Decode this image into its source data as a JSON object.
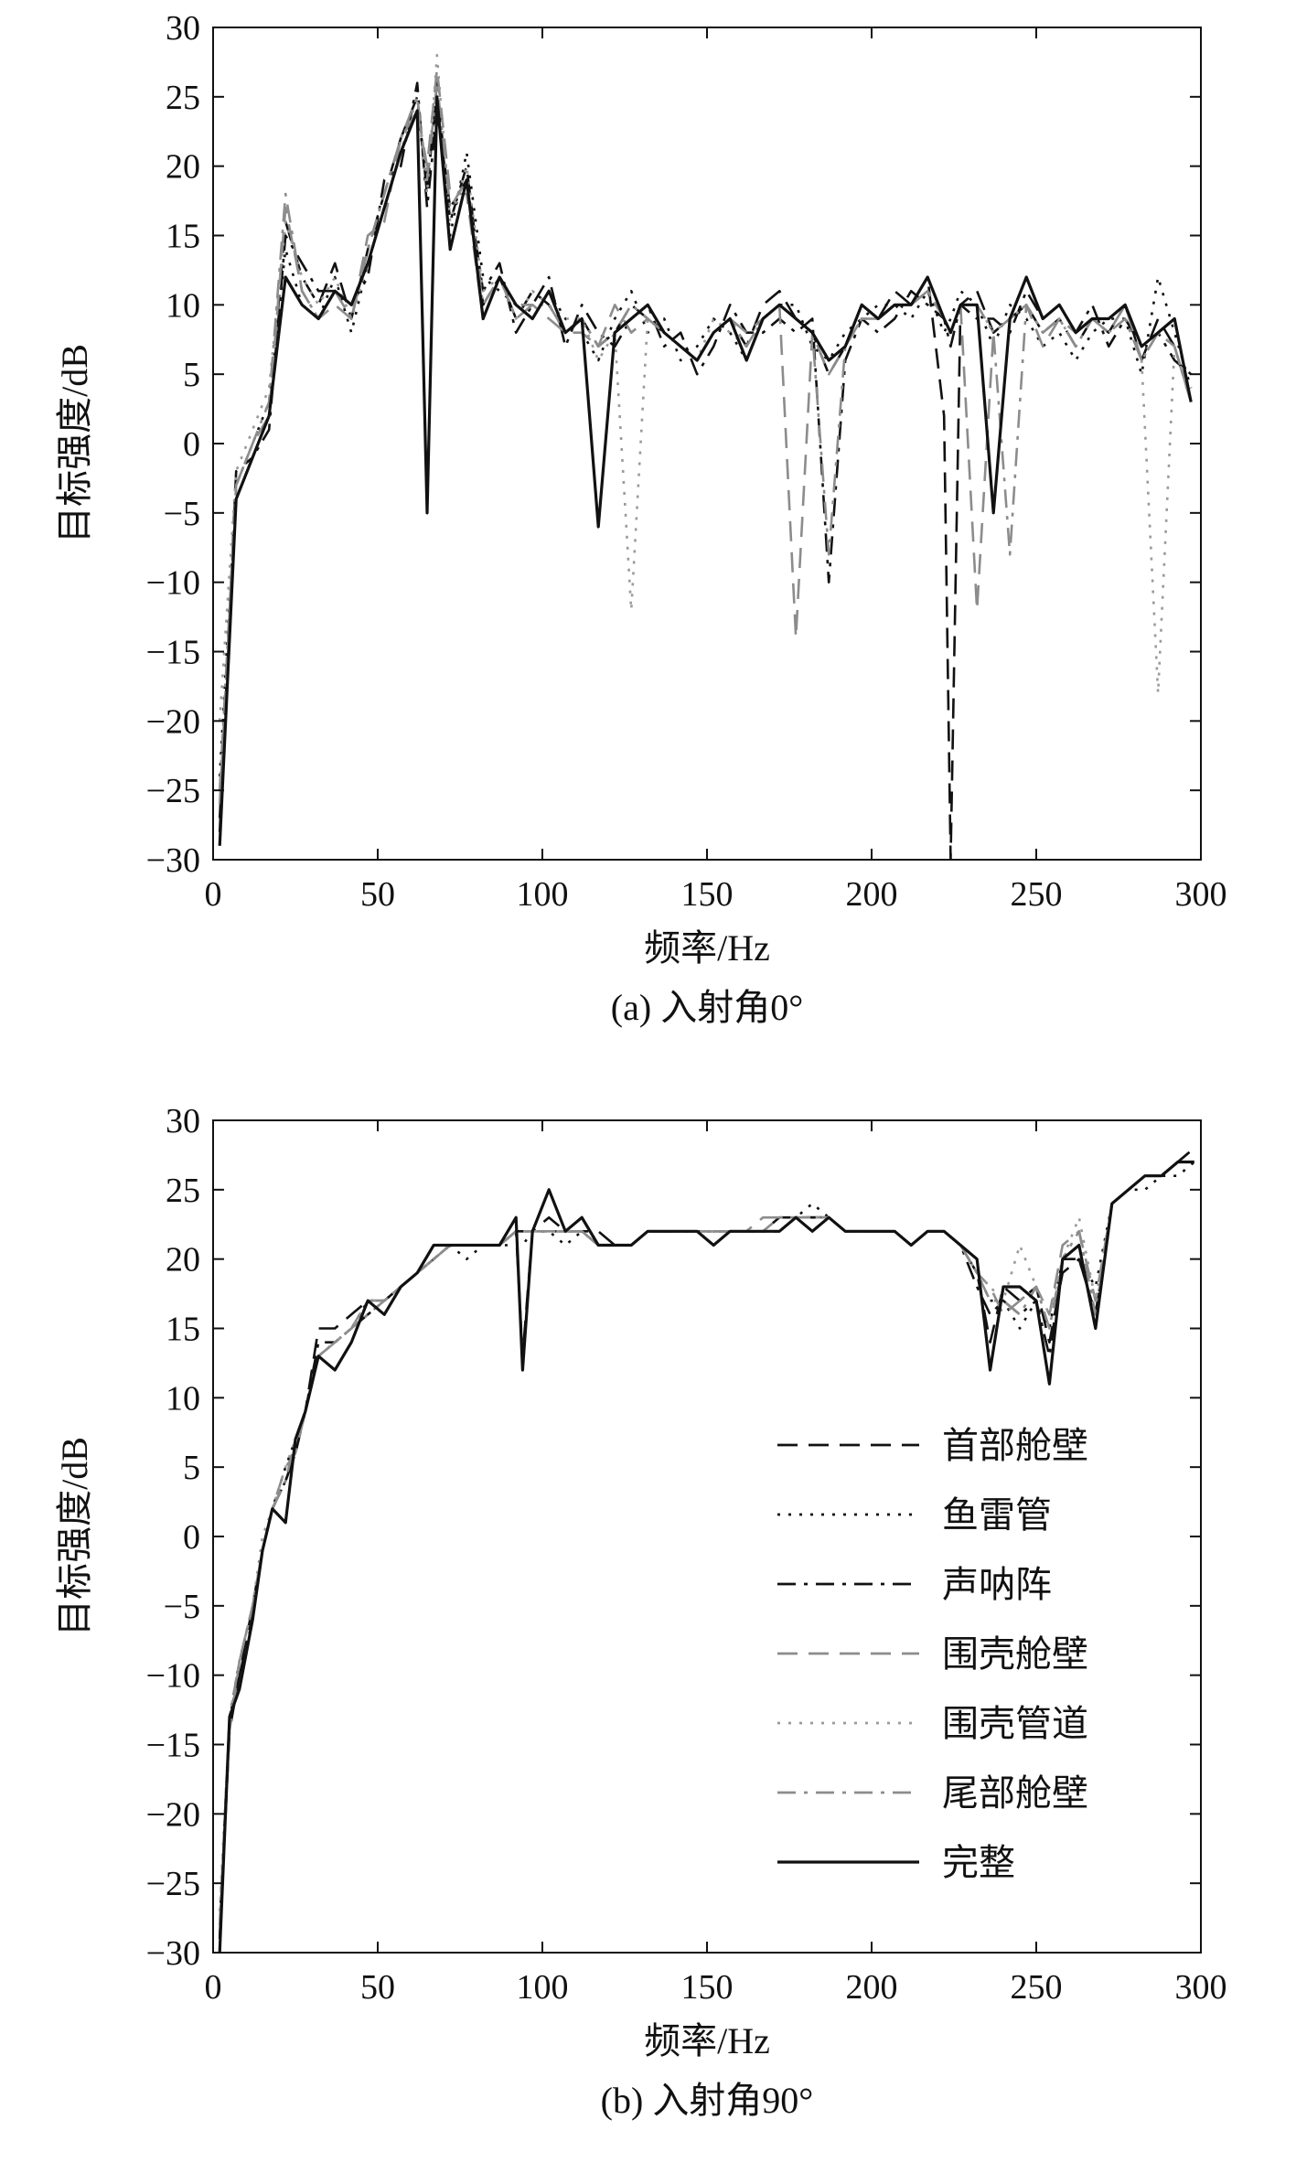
{
  "legend_entries": [
    {
      "name": "首部舱壁",
      "color": "#111111",
      "dash": "dash"
    },
    {
      "name": "鱼雷管",
      "color": "#111111",
      "dash": "dot"
    },
    {
      "name": "声呐阵",
      "color": "#111111",
      "dash": "dashdot"
    },
    {
      "name": "围壳舱壁",
      "color": "#8c8c8c",
      "dash": "dash"
    },
    {
      "name": "围壳管道",
      "color": "#9a9a9a",
      "dash": "dot"
    },
    {
      "name": "尾部舱壁",
      "color": "#8c8c8c",
      "dash": "dashdot"
    },
    {
      "name": "完整",
      "color": "#111111",
      "dash": "solid"
    }
  ],
  "chart_data": [
    {
      "type": "line",
      "caption": "(a) 入射角0°",
      "xlabel": "频率/Hz",
      "ylabel": "目标强度/dB",
      "xlim": [
        0,
        300
      ],
      "ylim": [
        -30,
        30
      ],
      "xticks": [
        0,
        50,
        100,
        150,
        200,
        250,
        300
      ],
      "yticks": [
        -30,
        -25,
        -20,
        -15,
        -10,
        -5,
        0,
        5,
        10,
        15,
        20,
        25,
        30
      ],
      "x": [
        2,
        7,
        12,
        17,
        22,
        27,
        32,
        37,
        42,
        47,
        52,
        57,
        62,
        65,
        68,
        72,
        77,
        82,
        87,
        92,
        97,
        102,
        107,
        112,
        117,
        122,
        127,
        132,
        137,
        142,
        147,
        152,
        157,
        162,
        167,
        172,
        177,
        182,
        187,
        192,
        197,
        202,
        207,
        212,
        217,
        222,
        224,
        227,
        232,
        237,
        242,
        247,
        252,
        257,
        262,
        267,
        272,
        277,
        282,
        287,
        292,
        297
      ],
      "series": [
        {
          "name": "首部舱壁",
          "values": [
            -28,
            -2,
            -1,
            2,
            16,
            12,
            10,
            13,
            9,
            14,
            18,
            22,
            25,
            18,
            26,
            16,
            20,
            10,
            12,
            9,
            11,
            10,
            8,
            9,
            7,
            8,
            10,
            9,
            8,
            7,
            6,
            8,
            9,
            7,
            10,
            11,
            9,
            8,
            5,
            7,
            10,
            9,
            11,
            10,
            12,
            2,
            -30,
            10,
            11,
            8,
            9,
            10,
            8,
            9,
            7,
            9,
            8,
            10,
            6,
            9,
            7,
            3
          ]
        },
        {
          "name": "鱼雷管",
          "values": [
            -24,
            -3,
            0,
            3,
            14,
            10,
            9,
            12,
            8,
            13,
            17,
            21,
            24,
            19,
            25,
            15,
            21,
            12,
            11,
            10,
            9,
            11,
            9,
            8,
            6,
            9,
            11,
            8,
            9,
            6,
            7,
            9,
            8,
            6,
            9,
            10,
            10,
            7,
            6,
            8,
            9,
            10,
            10,
            9,
            11,
            8,
            9,
            11,
            10,
            7,
            10,
            9,
            7,
            8,
            6,
            8,
            9,
            9,
            5,
            12,
            8,
            4
          ]
        },
        {
          "name": "声呐阵",
          "values": [
            -27,
            -4,
            -1,
            1,
            15,
            13,
            11,
            11,
            10,
            12,
            19,
            20,
            26,
            17,
            24,
            17,
            19,
            11,
            13,
            8,
            10,
            12,
            7,
            10,
            8,
            7,
            9,
            10,
            7,
            8,
            5,
            7,
            10,
            8,
            8,
            9,
            8,
            9,
            -10,
            6,
            9,
            8,
            9,
            11,
            10,
            9,
            7,
            10,
            9,
            9,
            8,
            11,
            9,
            10,
            8,
            10,
            7,
            9,
            7,
            8,
            6,
            5
          ]
        },
        {
          "name": "围壳舱壁",
          "values": [
            -26,
            -3,
            0,
            2,
            17,
            11,
            9,
            10,
            9,
            15,
            16,
            22,
            24,
            20,
            27,
            18,
            18,
            9,
            12,
            10,
            10,
            9,
            8,
            8,
            7,
            10,
            8,
            9,
            8,
            7,
            6,
            8,
            9,
            8,
            9,
            10,
            -14,
            8,
            5,
            7,
            9,
            9,
            10,
            10,
            11,
            9,
            8,
            10,
            -12,
            8,
            9,
            10,
            7,
            9,
            8,
            9,
            8,
            10,
            6,
            8,
            7,
            3
          ]
        },
        {
          "name": "围壳管道",
          "values": [
            -20,
            -2,
            1,
            4,
            16,
            12,
            10,
            12,
            9,
            13,
            17,
            21,
            25,
            18,
            28,
            16,
            20,
            11,
            12,
            9,
            11,
            10,
            9,
            9,
            6,
            8,
            -12,
            9,
            8,
            7,
            6,
            9,
            8,
            7,
            9,
            10,
            9,
            8,
            6,
            7,
            9,
            9,
            10,
            10,
            11,
            9,
            8,
            10,
            10,
            8,
            9,
            10,
            8,
            9,
            7,
            9,
            8,
            9,
            6,
            -18,
            7,
            3
          ]
        },
        {
          "name": "尾部舱壁",
          "values": [
            -25,
            -3,
            0,
            3,
            18,
            11,
            9,
            11,
            9,
            14,
            18,
            22,
            25,
            19,
            26,
            17,
            19,
            10,
            12,
            9,
            10,
            10,
            8,
            9,
            7,
            8,
            10,
            9,
            8,
            7,
            6,
            8,
            9,
            7,
            9,
            10,
            9,
            8,
            -8,
            7,
            9,
            9,
            10,
            10,
            11,
            9,
            8,
            10,
            10,
            8,
            -8,
            10,
            8,
            9,
            7,
            9,
            8,
            9,
            6,
            8,
            7,
            3
          ]
        },
        {
          "name": "完整",
          "values": [
            -29,
            -4,
            -1,
            2,
            12,
            10,
            9,
            11,
            10,
            13,
            17,
            21,
            24,
            -5,
            25,
            14,
            19,
            9,
            12,
            10,
            9,
            11,
            8,
            9,
            -6,
            8,
            9,
            10,
            8,
            7,
            6,
            8,
            9,
            6,
            9,
            10,
            9,
            8,
            6,
            7,
            10,
            9,
            10,
            10,
            12,
            9,
            8,
            10,
            10,
            -5,
            9,
            12,
            9,
            10,
            8,
            9,
            9,
            10,
            7,
            8,
            9,
            3
          ]
        }
      ]
    },
    {
      "type": "line",
      "caption": "(b) 入射角90°",
      "xlabel": "频率/Hz",
      "ylabel": "目标强度/dB",
      "xlim": [
        0,
        300
      ],
      "ylim": [
        -30,
        30
      ],
      "xticks": [
        0,
        50,
        100,
        150,
        200,
        250,
        300
      ],
      "yticks": [
        -30,
        -25,
        -20,
        -15,
        -10,
        -5,
        0,
        5,
        10,
        15,
        20,
        25,
        30
      ],
      "x": [
        2,
        5,
        8,
        12,
        15,
        18,
        22,
        25,
        28,
        32,
        37,
        42,
        47,
        52,
        57,
        62,
        67,
        72,
        77,
        82,
        87,
        92,
        94,
        97,
        102,
        107,
        112,
        117,
        122,
        127,
        132,
        137,
        142,
        147,
        152,
        157,
        162,
        167,
        172,
        177,
        182,
        187,
        192,
        197,
        202,
        207,
        212,
        217,
        222,
        227,
        232,
        236,
        240,
        245,
        250,
        254,
        258,
        263,
        268,
        273,
        278,
        283,
        288,
        293,
        298
      ],
      "series": [
        {
          "name": "首部舱壁",
          "values": [
            -29,
            -14,
            -10,
            -5,
            -1,
            2,
            4,
            6,
            9,
            15,
            15,
            16,
            17,
            17,
            18,
            19,
            20,
            21,
            21,
            21,
            21,
            22,
            13,
            22,
            23,
            22,
            22,
            22,
            21,
            21,
            22,
            22,
            22,
            22,
            22,
            22,
            22,
            22,
            23,
            23,
            23,
            23,
            22,
            22,
            22,
            22,
            21,
            22,
            22,
            21,
            19,
            14,
            18,
            17,
            18,
            14,
            19,
            20,
            16,
            24,
            25,
            26,
            26,
            27,
            28
          ]
        },
        {
          "name": "鱼雷管",
          "values": [
            -28,
            -13,
            -9,
            -5,
            -1,
            2,
            5,
            7,
            9,
            13,
            14,
            15,
            17,
            17,
            18,
            19,
            20,
            21,
            20,
            21,
            21,
            21,
            21,
            22,
            22,
            21,
            22,
            21,
            21,
            21,
            22,
            22,
            22,
            22,
            22,
            22,
            22,
            22,
            22,
            23,
            24,
            23,
            22,
            22,
            22,
            22,
            21,
            22,
            22,
            21,
            19,
            17,
            17,
            15,
            17,
            15,
            20,
            20,
            18,
            24,
            25,
            25,
            26,
            26,
            27
          ]
        },
        {
          "name": "声呐阵",
          "values": [
            -29,
            -13,
            -10,
            -6,
            -1,
            2,
            4,
            6,
            9,
            14,
            14,
            15,
            16,
            17,
            18,
            19,
            20,
            21,
            21,
            21,
            21,
            22,
            22,
            22,
            22,
            22,
            22,
            21,
            21,
            21,
            22,
            22,
            22,
            22,
            22,
            22,
            22,
            22,
            22,
            23,
            23,
            23,
            22,
            22,
            22,
            22,
            21,
            22,
            22,
            21,
            18,
            16,
            17,
            16,
            17,
            13,
            20,
            20,
            16,
            24,
            25,
            26,
            26,
            27,
            28
          ]
        },
        {
          "name": "围壳舱壁",
          "values": [
            -28,
            -14,
            -9,
            -5,
            -1,
            2,
            5,
            6,
            9,
            13,
            14,
            15,
            17,
            17,
            18,
            19,
            20,
            21,
            21,
            21,
            21,
            22,
            22,
            22,
            22,
            22,
            22,
            21,
            21,
            21,
            22,
            22,
            22,
            22,
            22,
            22,
            22,
            23,
            23,
            23,
            23,
            23,
            22,
            22,
            22,
            22,
            21,
            22,
            22,
            21,
            19,
            18,
            16,
            17,
            18,
            16,
            21,
            22,
            17,
            24,
            25,
            26,
            26,
            27,
            27
          ]
        },
        {
          "name": "围壳管道",
          "values": [
            -27,
            -13,
            -9,
            -5,
            0,
            2,
            5,
            7,
            9,
            13,
            14,
            15,
            17,
            17,
            18,
            19,
            20,
            21,
            21,
            21,
            21,
            22,
            22,
            22,
            22,
            22,
            22,
            21,
            21,
            21,
            22,
            22,
            22,
            22,
            22,
            22,
            22,
            22,
            22,
            23,
            23,
            23,
            22,
            22,
            22,
            22,
            21,
            22,
            22,
            21,
            19,
            18,
            17,
            21,
            18,
            16,
            20,
            23,
            17,
            24,
            25,
            26,
            26,
            27,
            27
          ]
        },
        {
          "name": "尾部舱壁",
          "values": [
            -28,
            -13,
            -9,
            -5,
            -1,
            2,
            4,
            7,
            9,
            13,
            14,
            15,
            16,
            17,
            18,
            19,
            20,
            21,
            21,
            21,
            21,
            22,
            22,
            22,
            22,
            22,
            22,
            21,
            21,
            21,
            22,
            22,
            22,
            22,
            22,
            22,
            22,
            22,
            23,
            23,
            23,
            23,
            22,
            22,
            22,
            22,
            21,
            22,
            22,
            21,
            19,
            17,
            17,
            16,
            18,
            15,
            20,
            22,
            16,
            24,
            25,
            26,
            26,
            27,
            27
          ]
        },
        {
          "name": "完整",
          "values": [
            -30,
            -13,
            -11,
            -6,
            -1,
            2,
            1,
            7,
            9,
            13,
            12,
            14,
            17,
            16,
            18,
            19,
            21,
            21,
            21,
            21,
            21,
            23,
            12,
            22,
            25,
            22,
            23,
            21,
            21,
            21,
            22,
            22,
            22,
            22,
            21,
            22,
            22,
            22,
            22,
            23,
            22,
            23,
            22,
            22,
            22,
            22,
            21,
            22,
            22,
            21,
            20,
            12,
            18,
            18,
            17,
            11,
            20,
            21,
            15,
            24,
            25,
            26,
            26,
            27,
            27
          ]
        }
      ]
    }
  ]
}
